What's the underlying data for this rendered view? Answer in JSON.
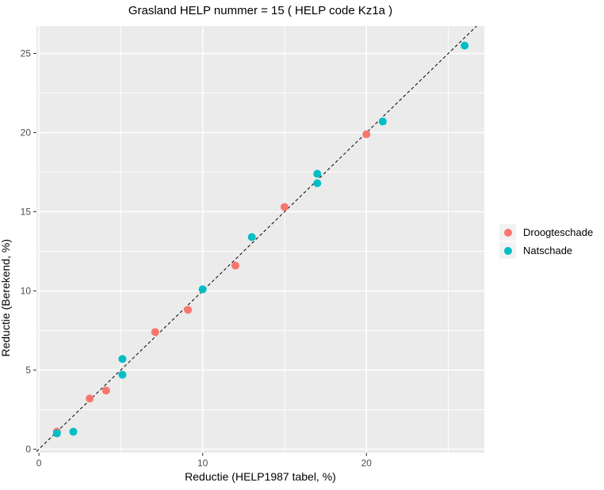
{
  "colors": {
    "panel_bg": "#EBEBEB",
    "grid": "#FFFFFF",
    "tick_mark": "#333333",
    "tick_text": "#4D4D4D",
    "legend_key_bg": "#F2F2F2",
    "reference_line": "#000000"
  },
  "chart_data": {
    "type": "scatter",
    "title": "Grasland HELP nummer = 15 ( HELP code Kz1a )",
    "xlabel": "Reductie (HELP1987 tabel, %)",
    "ylabel": "Reductie (Berekend, %)",
    "x_ticks": [
      0,
      10,
      20
    ],
    "x_minor_ticks": [
      5,
      15,
      25
    ],
    "y_ticks": [
      0,
      5,
      10,
      15,
      20,
      25
    ],
    "y_minor_ticks": [
      2.5,
      7.5,
      12.5,
      17.5,
      22.5
    ],
    "xlim": [
      -0.15,
      27.2
    ],
    "ylim": [
      -0.23,
      26.73
    ],
    "grid": true,
    "legend_position": "right",
    "reference_line": "identity y=x dashed",
    "series": [
      {
        "name": "Droogteschade",
        "color": "#F8766D",
        "points": [
          [
            1.1,
            1.1
          ],
          [
            3.1,
            3.2
          ],
          [
            4.1,
            3.7
          ],
          [
            7.1,
            7.4
          ],
          [
            9.1,
            8.8
          ],
          [
            12,
            11.6
          ],
          [
            15,
            15.3
          ],
          [
            20,
            19.9
          ]
        ]
      },
      {
        "name": "Natschade",
        "color": "#00BFC4",
        "points": [
          [
            1.1,
            1.0
          ],
          [
            2.1,
            1.1
          ],
          [
            5.1,
            4.7
          ],
          [
            5.1,
            5.7
          ],
          [
            10,
            10.1
          ],
          [
            13,
            13.4
          ],
          [
            17,
            16.8
          ],
          [
            17,
            17.4
          ],
          [
            21,
            20.7
          ],
          [
            26,
            25.5
          ]
        ]
      }
    ]
  }
}
